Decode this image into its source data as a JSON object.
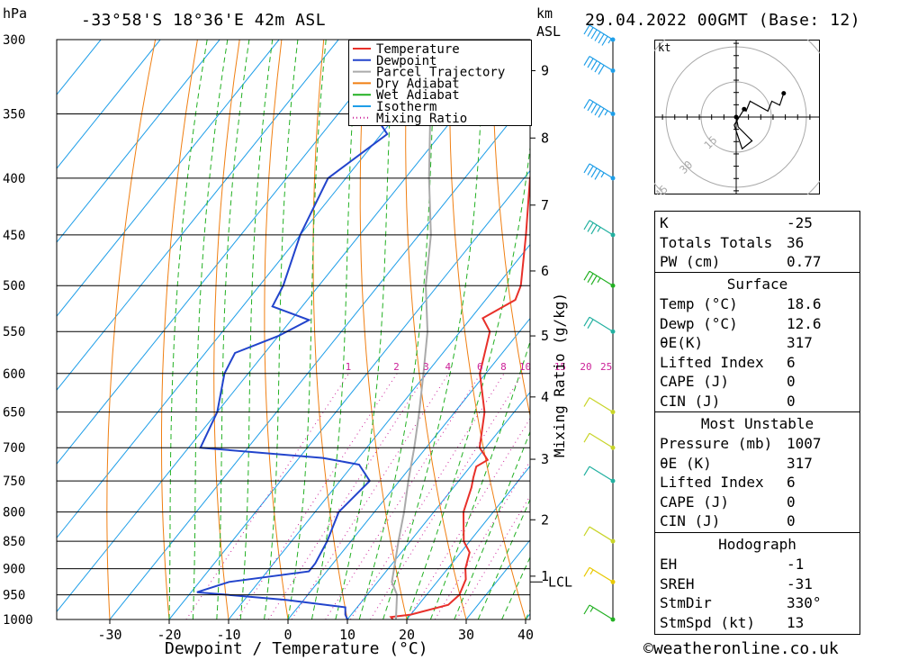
{
  "header": {
    "location": "-33°58'S  18°36'E  42m  ASL",
    "datetime": "29.04.2022  00GMT  (Base: 12)",
    "unit_left": "hPa",
    "unit_right_1": "km",
    "unit_right_2": "ASL"
  },
  "footer": {
    "credit": "©weatheronline.co.uk"
  },
  "colors": {
    "temperature": "#e8302a",
    "dewpoint": "#2244cc",
    "parcel": "#aaaaaa",
    "dry_adiabat": "#f07f12",
    "wet_adiabat": "#22b022",
    "isotherm": "#1e9ee8",
    "mixing_ratio": "#cc2299"
  },
  "chart_data": {
    "type": "line",
    "subtype": "skew-T log-P diagram",
    "xlabel": "Dewpoint / Temperature (°C)",
    "ylabel_right": "Mixing Ratio (g/kg)",
    "x_ticks": [
      "-30",
      "-20",
      "-10",
      "0",
      "10",
      "20",
      "30",
      "40"
    ],
    "pressure_levels": [
      300,
      350,
      400,
      450,
      500,
      550,
      600,
      650,
      700,
      750,
      800,
      850,
      900,
      950,
      1000
    ],
    "km_ticks": [
      {
        "label": "9",
        "p": 320
      },
      {
        "label": "8",
        "p": 368
      },
      {
        "label": "7",
        "p": 423
      },
      {
        "label": "6",
        "p": 485
      },
      {
        "label": "5",
        "p": 555
      },
      {
        "label": "4",
        "p": 630
      },
      {
        "label": "3",
        "p": 717
      },
      {
        "label": "2",
        "p": 813
      },
      {
        "label": "1",
        "p": 914
      }
    ],
    "lcl_label": "LCL",
    "lcl_p": 925,
    "mixing_ratio_labels": [
      "1",
      "2",
      "3",
      "4",
      "6",
      "8",
      "10",
      "15",
      "20",
      "25"
    ],
    "legend": [
      "Temperature",
      "Dewpoint",
      "Parcel Trajectory",
      "Dry Adiabat",
      "Wet Adiabat",
      "Isotherm",
      "Mixing Ratio"
    ],
    "series": [
      {
        "name": "Temperature",
        "points": [
          [
            1007,
            18.6
          ],
          [
            995,
            17
          ],
          [
            990,
            20
          ],
          [
            970,
            25
          ],
          [
            950,
            25.5
          ],
          [
            920,
            24.5
          ],
          [
            900,
            23
          ],
          [
            870,
            21.5
          ],
          [
            850,
            19
          ],
          [
            800,
            15
          ],
          [
            760,
            13
          ],
          [
            745,
            12
          ],
          [
            728,
            11
          ],
          [
            718,
            12
          ],
          [
            700,
            9
          ],
          [
            650,
            5
          ],
          [
            600,
            -1
          ],
          [
            550,
            -5
          ],
          [
            535,
            -8
          ],
          [
            515,
            -5
          ],
          [
            500,
            -6
          ],
          [
            450,
            -12
          ],
          [
            400,
            -19
          ],
          [
            350,
            -25
          ],
          [
            300,
            -33
          ]
        ]
      },
      {
        "name": "Dewpoint",
        "points": [
          [
            1007,
            12.6
          ],
          [
            1000,
            10
          ],
          [
            990,
            9
          ],
          [
            975,
            8
          ],
          [
            960,
            -3
          ],
          [
            945,
            -19
          ],
          [
            925,
            -15
          ],
          [
            905,
            -3
          ],
          [
            890,
            -3
          ],
          [
            850,
            -4
          ],
          [
            800,
            -6
          ],
          [
            750,
            -5
          ],
          [
            725,
            -9
          ],
          [
            715,
            -16
          ],
          [
            700,
            -38
          ],
          [
            650,
            -40
          ],
          [
            600,
            -44
          ],
          [
            575,
            -45
          ],
          [
            555,
            -40
          ],
          [
            537,
            -37
          ],
          [
            522,
            -45
          ],
          [
            500,
            -46
          ],
          [
            450,
            -50
          ],
          [
            400,
            -53
          ],
          [
            365,
            -49
          ],
          [
            350,
            -54
          ],
          [
            335,
            -58
          ],
          [
            300,
            -60
          ]
        ]
      },
      {
        "name": "Parcel Trajectory",
        "points": [
          [
            1007,
            18.6
          ],
          [
            950,
            15
          ],
          [
            925,
            12.4
          ],
          [
            900,
            11
          ],
          [
            850,
            8
          ],
          [
            800,
            5
          ],
          [
            750,
            1.5
          ],
          [
            700,
            -2
          ],
          [
            650,
            -6
          ],
          [
            600,
            -10.5
          ],
          [
            550,
            -15.5
          ],
          [
            500,
            -22
          ],
          [
            450,
            -28
          ],
          [
            400,
            -36
          ],
          [
            350,
            -44.5
          ],
          [
            300,
            -54.5
          ]
        ]
      }
    ]
  },
  "hodograph": {
    "unit": "kt",
    "rings": [
      "15",
      "30",
      "45"
    ],
    "trace": [
      [
        0,
        0
      ],
      [
        1,
        -5
      ],
      [
        8,
        -12
      ],
      [
        3,
        -16
      ],
      [
        -1,
        -4
      ],
      [
        4,
        4
      ],
      [
        5,
        3
      ],
      [
        7,
        8
      ],
      [
        16,
        3
      ],
      [
        18,
        8
      ],
      [
        22,
        6
      ],
      [
        24,
        12
      ]
    ]
  },
  "wind_barbs": [
    {
      "p": 300,
      "color": "#1e9ee8",
      "speed": 55
    },
    {
      "p": 320,
      "color": "#1e9ee8",
      "speed": 50
    },
    {
      "p": 350,
      "color": "#1e9ee8",
      "speed": 45
    },
    {
      "p": 400,
      "color": "#1e9ee8",
      "speed": 35
    },
    {
      "p": 450,
      "color": "#22b0a0",
      "speed": 25
    },
    {
      "p": 500,
      "color": "#22b022",
      "speed": 25
    },
    {
      "p": 550,
      "color": "#22b0a0",
      "speed": 20
    },
    {
      "p": 650,
      "color": "#c8d428",
      "speed": 10
    },
    {
      "p": 700,
      "color": "#c8d428",
      "speed": 10
    },
    {
      "p": 750,
      "color": "#22b0a0",
      "speed": 10
    },
    {
      "p": 850,
      "color": "#c8d428",
      "speed": 10
    },
    {
      "p": 925,
      "color": "#e8c800",
      "speed": 5
    },
    {
      "p": 1000,
      "color": "#22b022",
      "speed": 5
    }
  ],
  "indices": [
    {
      "label": "K",
      "value": "-25"
    },
    {
      "label": "Totals Totals",
      "value": "36"
    },
    {
      "label": "PW (cm)",
      "value": "0.77"
    }
  ],
  "surface": {
    "title": "Surface",
    "rows": [
      {
        "label": "Temp (°C)",
        "value": "18.6"
      },
      {
        "label": "Dewp (°C)",
        "value": "12.6"
      },
      {
        "label": "θE(K)",
        "value": "317"
      },
      {
        "label": "Lifted Index",
        "value": "6"
      },
      {
        "label": "CAPE (J)",
        "value": "0"
      },
      {
        "label": "CIN (J)",
        "value": "0"
      }
    ]
  },
  "most_unstable": {
    "title": "Most Unstable",
    "rows": [
      {
        "label": "Pressure (mb)",
        "value": "1007"
      },
      {
        "label": "θE (K)",
        "value": "317"
      },
      {
        "label": "Lifted Index",
        "value": "6"
      },
      {
        "label": "CAPE (J)",
        "value": "0"
      },
      {
        "label": "CIN (J)",
        "value": "0"
      }
    ]
  },
  "hodograph_table": {
    "title": "Hodograph",
    "rows": [
      {
        "label": "EH",
        "value": "-1"
      },
      {
        "label": "SREH",
        "value": "-31"
      },
      {
        "label": "StmDir",
        "value": "330°"
      },
      {
        "label": "StmSpd (kt)",
        "value": "13"
      }
    ]
  }
}
